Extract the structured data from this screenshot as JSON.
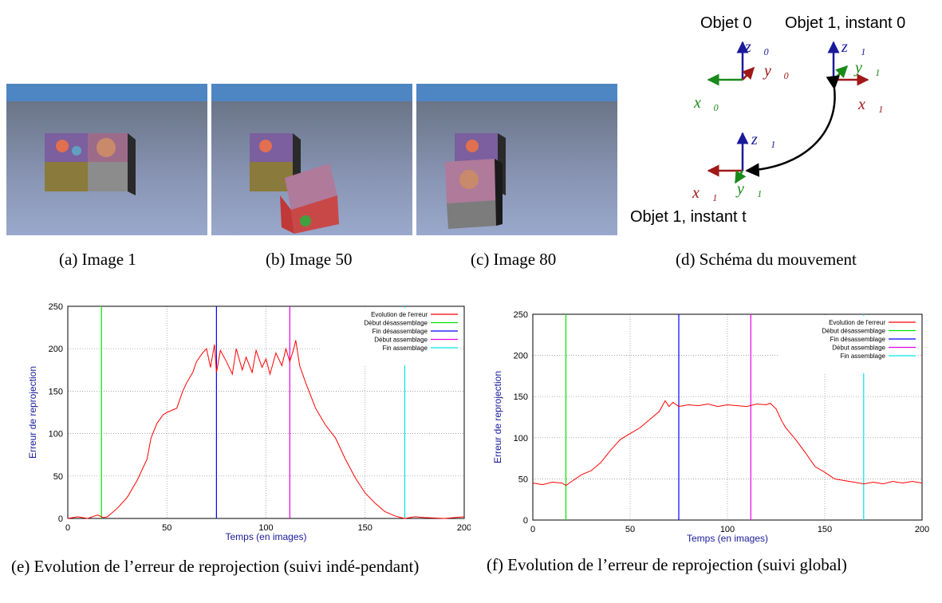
{
  "figure": {
    "subfigures": [
      {
        "id": "a",
        "caption": "(a) Image 1"
      },
      {
        "id": "b",
        "caption": "(b) Image 50"
      },
      {
        "id": "c",
        "caption": "(c) Image 80"
      },
      {
        "id": "d",
        "caption": "(d) Schéma du mouvement"
      },
      {
        "id": "e",
        "caption": "(e) Evolution de l’erreur de reprojection (suivi indé-pendant)"
      },
      {
        "id": "f",
        "caption": "(f) Evolution de l’erreur de reprojection (suivi global)"
      }
    ],
    "schema": {
      "label_obj0": "Objet 0",
      "label_obj1_t0": "Objet 1, instant 0",
      "label_obj1_tt": "Objet 1, instant t",
      "axes_obj0": {
        "z": "z0",
        "y": "y0",
        "x": "x0"
      },
      "axes_obj1_t0": {
        "z": "z1",
        "y": "y1",
        "x": "x1"
      },
      "axes_obj1_tt": {
        "z": "z1",
        "y": "y1",
        "x": "x1"
      },
      "colors": {
        "x": "#a01818",
        "y": "#1a8a1a",
        "z": "#1a1a9a"
      }
    }
  },
  "chart_data": [
    {
      "type": "line",
      "xlabel": "Temps (en images)",
      "ylabel": "Erreur de reprojection",
      "xlim": [
        0,
        200
      ],
      "ylim": [
        0,
        250
      ],
      "xticks": [
        0,
        50,
        100,
        150,
        200
      ],
      "yticks": [
        0,
        50,
        100,
        150,
        200,
        250
      ],
      "grid": true,
      "legend_position": "top-right",
      "series": [
        {
          "name": "Evolution de l'erreur",
          "color": "#ff0000",
          "x": [
            0,
            5,
            10,
            15,
            18,
            20,
            25,
            30,
            35,
            40,
            42,
            45,
            48,
            50,
            55,
            58,
            60,
            63,
            65,
            68,
            70,
            72,
            74,
            75,
            77,
            80,
            83,
            85,
            88,
            90,
            93,
            95,
            98,
            100,
            102,
            105,
            108,
            110,
            112,
            114,
            115,
            117,
            120,
            125,
            130,
            135,
            140,
            145,
            150,
            155,
            160,
            165,
            168,
            170,
            175,
            180,
            190,
            200
          ],
          "y": [
            0,
            2,
            0,
            4,
            1,
            2,
            12,
            25,
            45,
            70,
            95,
            112,
            122,
            125,
            130,
            150,
            160,
            172,
            185,
            195,
            200,
            178,
            205,
            172,
            198,
            185,
            170,
            200,
            175,
            190,
            172,
            198,
            178,
            188,
            170,
            195,
            180,
            200,
            185,
            200,
            210,
            180,
            160,
            130,
            110,
            95,
            70,
            48,
            30,
            18,
            8,
            3,
            1,
            0,
            2,
            1,
            0,
            2
          ]
        },
        {
          "name": "Début désassemblage",
          "color": "#00e600",
          "vline": 17
        },
        {
          "name": "Fin désassemblage",
          "color": "#0000ff",
          "vline": 75
        },
        {
          "name": "Début assemblage",
          "color": "#e600e6",
          "vline": 112
        },
        {
          "name": "Fin assemblage",
          "color": "#00e6e6",
          "vline": 170
        }
      ]
    },
    {
      "type": "line",
      "xlabel": "Temps (en images)",
      "ylabel": "Erreur de reprojection",
      "xlim": [
        0,
        200
      ],
      "ylim": [
        0,
        250
      ],
      "xticks": [
        0,
        50,
        100,
        150,
        200
      ],
      "yticks": [
        0,
        50,
        100,
        150,
        200,
        250
      ],
      "grid": true,
      "legend_position": "top-right",
      "series": [
        {
          "name": "Evolution de l'erreur",
          "color": "#ff0000",
          "x": [
            0,
            5,
            10,
            15,
            17,
            20,
            25,
            30,
            35,
            40,
            45,
            50,
            55,
            60,
            65,
            68,
            70,
            72,
            75,
            80,
            85,
            90,
            95,
            100,
            105,
            110,
            115,
            120,
            122,
            125,
            128,
            130,
            135,
            140,
            145,
            150,
            155,
            160,
            165,
            170,
            175,
            180,
            185,
            190,
            195,
            200
          ],
          "y": [
            45,
            43,
            46,
            45,
            42,
            47,
            55,
            60,
            70,
            85,
            98,
            105,
            112,
            122,
            132,
            145,
            138,
            143,
            138,
            140,
            139,
            141,
            138,
            140,
            139,
            138,
            141,
            140,
            142,
            135,
            120,
            112,
            98,
            82,
            65,
            58,
            50,
            48,
            46,
            44,
            46,
            44,
            47,
            45,
            47,
            45
          ]
        },
        {
          "name": "Début désassemblage",
          "color": "#00e600",
          "vline": 17
        },
        {
          "name": "Fin désassemblage",
          "color": "#0000ff",
          "vline": 75
        },
        {
          "name": "Début assemblage",
          "color": "#e600e6",
          "vline": 112
        },
        {
          "name": "Fin assemblage",
          "color": "#00e6e6",
          "vline": 170
        }
      ]
    }
  ]
}
